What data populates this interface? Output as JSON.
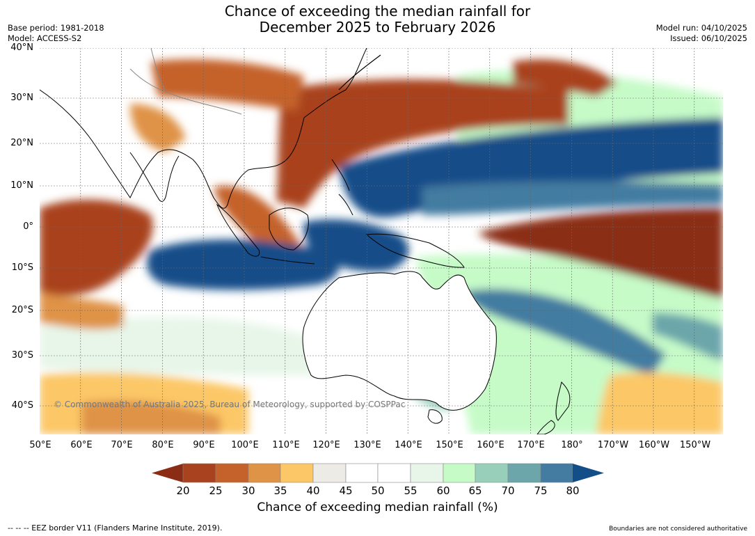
{
  "title_line1": "Chance of exceeding the median rainfall for",
  "title_line2": "December 2025 to February 2026",
  "base_period": "Base period: 1981-2018",
  "model": "Model: ACCESS-S2",
  "model_run": "Model run: 04/10/2025",
  "issued": "Issued: 06/10/2025",
  "latitude_labels": [
    "40°N",
    "30°N",
    "20°N",
    "10°N",
    "0°",
    "10°S",
    "20°S",
    "30°S",
    "40°S"
  ],
  "longitude_labels": [
    "50°E",
    "60°E",
    "70°E",
    "80°E",
    "90°E",
    "100°E",
    "110°E",
    "120°E",
    "130°E",
    "140°E",
    "150°E",
    "160°E",
    "170°E",
    "180°",
    "170°W",
    "160°W",
    "150°W"
  ],
  "copyright": "© Commonwealth of Australia 2025, Bureau of Meteorology, supported by COSPPac",
  "colorbar": {
    "tick_labels": [
      "20",
      "25",
      "30",
      "35",
      "40",
      "45",
      "50",
      "55",
      "60",
      "65",
      "70",
      "75",
      "80"
    ],
    "colors": [
      "#8b2d14",
      "#a9431f",
      "#c5622b",
      "#df9346",
      "#fcc766",
      "#ecebe6",
      "#ffffff",
      "#ffffff",
      "#e7f6e9",
      "#c6fbc8",
      "#98cfba",
      "#6ca6aa",
      "#437ba1",
      "#144e89"
    ],
    "title": "Chance of exceeding median rainfall (%)"
  },
  "legend_eez": "-- -- -- EEZ border V11 (Flanders Marine Institute, 2019).",
  "disclaimer": "Boundaries are not considered authoritative"
}
